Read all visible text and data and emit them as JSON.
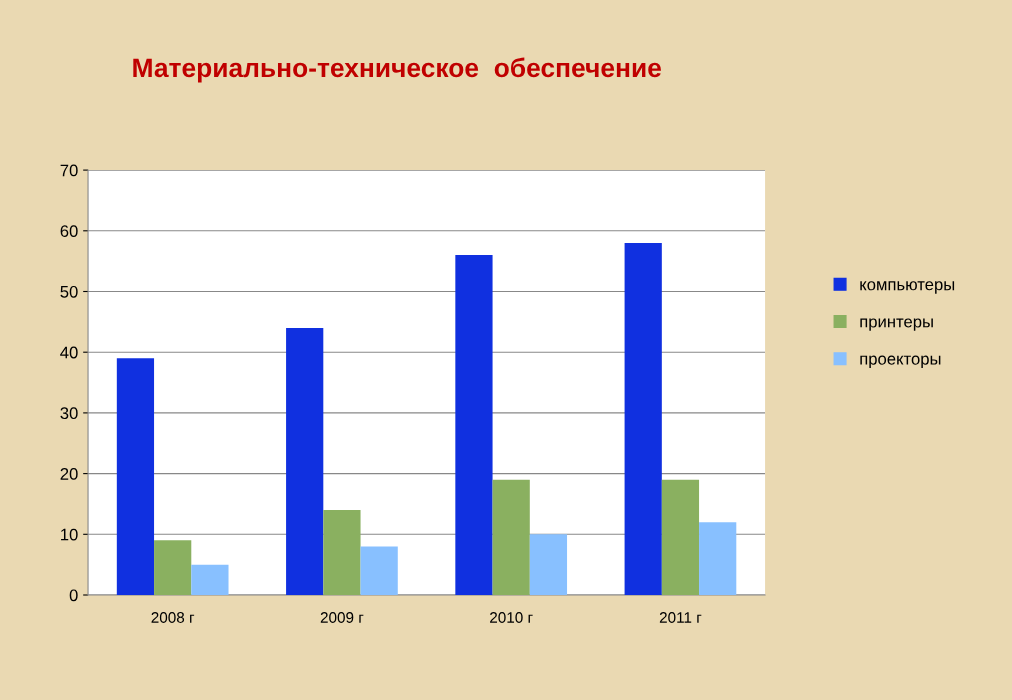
{
  "chart_data": {
    "type": "bar",
    "title": "Материально-техническое  обеспечение",
    "categories": [
      "2008 г",
      "2009 г",
      "2010 г",
      "2011 г"
    ],
    "series": [
      {
        "name": "компьютеры",
        "color": "#1030e0",
        "values": [
          39,
          44,
          56,
          58
        ]
      },
      {
        "name": "принтеры",
        "color": "#8ab060",
        "values": [
          9,
          14,
          19,
          19
        ]
      },
      {
        "name": "проекторы",
        "color": "#88c0ff",
        "values": [
          5,
          8,
          10,
          12
        ]
      }
    ],
    "ylim": [
      0,
      70
    ],
    "yticks": [
      0,
      10,
      20,
      30,
      40,
      50,
      60,
      70
    ],
    "grid": "y",
    "legend": "right"
  }
}
